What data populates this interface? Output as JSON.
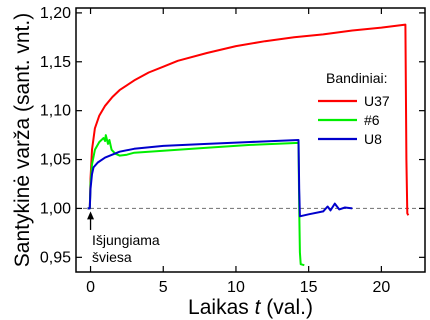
{
  "chart_data": {
    "type": "line",
    "xlabel_prefix": "Laikas ",
    "xlabel_var": "t",
    "xlabel_suffix": " (val.)",
    "ylabel": "Santykinė varža (sant. vnt.)",
    "xlim": [
      -1,
      23
    ],
    "ylim": [
      0.935,
      1.205
    ],
    "x_ticks": [
      0,
      5,
      10,
      15,
      20
    ],
    "x_tick_labels": [
      "0",
      "5",
      "10",
      "15",
      "20"
    ],
    "y_ticks": [
      0.95,
      1.0,
      1.05,
      1.1,
      1.15,
      1.2
    ],
    "y_tick_labels": [
      "0,95",
      "1,00",
      "1,05",
      "1,10",
      "1,15",
      "1,20"
    ],
    "legend_title": "Bandiniai:",
    "legend_position": "right",
    "reference_line": {
      "y": 1.0,
      "style": "dashed",
      "color": "#808080"
    },
    "annotation": {
      "lines": [
        "Išjungiama",
        "šviesa"
      ],
      "arrow_x": 0,
      "arrow_from_y": 0.978,
      "arrow_to_y": 0.997
    },
    "series": [
      {
        "name": "U37",
        "color": "#ff0000",
        "points": [
          [
            -0.2,
            1.0
          ],
          [
            -0.05,
            1.0
          ],
          [
            0.0,
            1.03
          ],
          [
            0.1,
            1.06
          ],
          [
            0.3,
            1.082
          ],
          [
            0.6,
            1.095
          ],
          [
            1.0,
            1.105
          ],
          [
            1.5,
            1.114
          ],
          [
            2.0,
            1.121
          ],
          [
            3.0,
            1.131
          ],
          [
            4.0,
            1.139
          ],
          [
            5.0,
            1.145
          ],
          [
            6.0,
            1.151
          ],
          [
            8.0,
            1.159
          ],
          [
            10.0,
            1.166
          ],
          [
            12.0,
            1.171
          ],
          [
            14.0,
            1.175
          ],
          [
            16.0,
            1.178
          ],
          [
            18.0,
            1.182
          ],
          [
            20.0,
            1.185
          ],
          [
            21.65,
            1.188
          ],
          [
            21.72,
            1.05
          ],
          [
            21.78,
            0.995
          ],
          [
            21.85,
            0.993
          ]
        ]
      },
      {
        "name": "#6",
        "color": "#00ee00",
        "points": [
          [
            -0.2,
            1.0
          ],
          [
            -0.05,
            1.0
          ],
          [
            0.0,
            1.025
          ],
          [
            0.1,
            1.045
          ],
          [
            0.3,
            1.06
          ],
          [
            0.6,
            1.068
          ],
          [
            0.9,
            1.072
          ],
          [
            1.0,
            1.069
          ],
          [
            1.05,
            1.075
          ],
          [
            1.2,
            1.066
          ],
          [
            1.3,
            1.07
          ],
          [
            1.45,
            1.06
          ],
          [
            1.7,
            1.056
          ],
          [
            2.0,
            1.054
          ],
          [
            2.5,
            1.055
          ],
          [
            3.0,
            1.057
          ],
          [
            5.0,
            1.059
          ],
          [
            8.0,
            1.062
          ],
          [
            11.0,
            1.065
          ],
          [
            14.3,
            1.067
          ],
          [
            14.35,
            1.0
          ],
          [
            14.4,
            0.955
          ],
          [
            14.45,
            0.943
          ],
          [
            14.7,
            0.942
          ]
        ]
      },
      {
        "name": "U8",
        "color": "#0000cc",
        "points": [
          [
            -0.2,
            1.0
          ],
          [
            -0.05,
            1.0
          ],
          [
            0.0,
            1.02
          ],
          [
            0.1,
            1.035
          ],
          [
            0.2,
            1.042
          ],
          [
            0.5,
            1.047
          ],
          [
            1.0,
            1.052
          ],
          [
            2.0,
            1.058
          ],
          [
            3.0,
            1.061
          ],
          [
            5.0,
            1.064
          ],
          [
            8.0,
            1.066
          ],
          [
            11.0,
            1.068
          ],
          [
            14.3,
            1.07
          ],
          [
            14.35,
            1.02
          ],
          [
            14.4,
            0.992
          ],
          [
            15.0,
            0.994
          ],
          [
            16.0,
            0.997
          ],
          [
            16.3,
            1.002
          ],
          [
            16.5,
            0.998
          ],
          [
            16.8,
            1.005
          ],
          [
            17.1,
            0.999
          ],
          [
            17.5,
            1.001
          ],
          [
            18.0,
            1.0
          ]
        ]
      }
    ]
  }
}
